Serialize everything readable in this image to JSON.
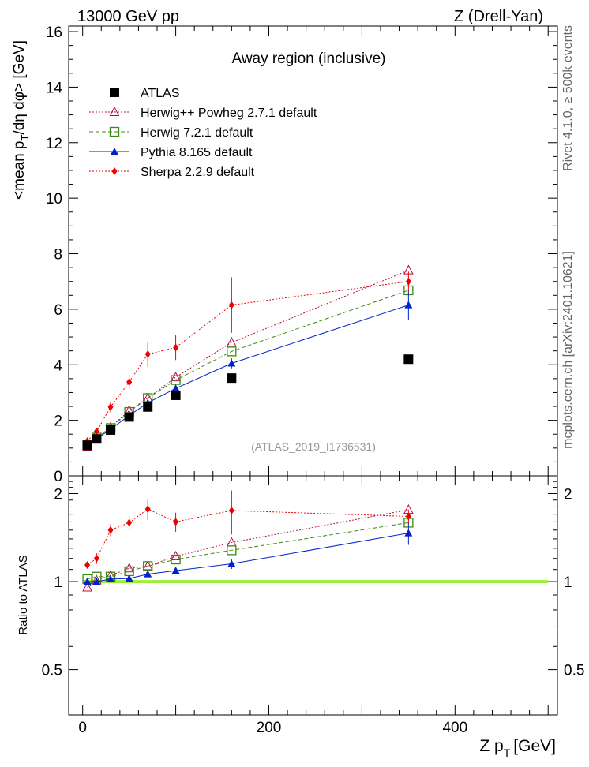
{
  "header": {
    "left": "13000 GeV pp",
    "right": "Z (Drell-Yan)"
  },
  "side_labels": {
    "rivet": "Rivet 4.1.0, ≥ 500k events",
    "mcplots": "mcplots.cern.ch [arXiv:2401.10621]"
  },
  "chart_data": {
    "type": "scatter",
    "title": "Away region (inclusive)",
    "analysis_tag": "(ATLAS_2019_I1736531)",
    "xlabel_main": "Z p",
    "xlabel_sub": "T",
    "xlabel_unit": "[GeV]",
    "ylabel": "<mean p_T/dη dφ> [GeV]",
    "ylabel_parts": {
      "pre": "<mean p",
      "sub": "T",
      "post": "/dη dφ> [GeV]"
    },
    "ratio_ylabel": "Ratio to ATLAS",
    "xlim": [
      -15,
      510
    ],
    "ylim": [
      0,
      16.2
    ],
    "ratio_ylim": [
      0.35,
      2.3
    ],
    "x_ticks": [
      0,
      200,
      400
    ],
    "y_ticks": [
      0,
      2,
      4,
      6,
      8,
      10,
      12,
      14,
      16
    ],
    "ratio_ticks_labels": [
      "0.5",
      "1",
      "2"
    ],
    "ratio_ticks": [
      0.5,
      1,
      2
    ],
    "x": [
      5,
      15,
      30,
      50,
      70,
      100,
      160,
      350
    ],
    "series": [
      {
        "name": "ATLAS",
        "color": "#000000",
        "marker": "square",
        "line": "none",
        "values": [
          1.1,
          1.33,
          1.65,
          2.12,
          2.48,
          2.9,
          3.52,
          4.2
        ],
        "errors": [
          0,
          0,
          0,
          0,
          0,
          0,
          0,
          0
        ]
      },
      {
        "name": "Herwig++ Powheg 2.7.1 default",
        "color": "#b01040",
        "marker": "triangle-open",
        "line": "dotted",
        "values": [
          1.05,
          1.35,
          1.75,
          2.35,
          2.8,
          3.55,
          4.8,
          7.4
        ],
        "errors": [
          0,
          0,
          0,
          0,
          0,
          0,
          0,
          0
        ]
      },
      {
        "name": "Herwig 7.2.1 default",
        "color": "#3c8a10",
        "marker": "square-open",
        "line": "dashed",
        "values": [
          1.12,
          1.38,
          1.72,
          2.3,
          2.8,
          3.45,
          4.48,
          6.68
        ],
        "errors": [
          0,
          0,
          0,
          0,
          0,
          0,
          0,
          0
        ]
      },
      {
        "name": "Pythia 8.165 default",
        "color": "#0022cc",
        "marker": "triangle",
        "line": "solid",
        "values": [
          1.1,
          1.33,
          1.68,
          2.17,
          2.63,
          3.15,
          4.05,
          6.15
        ],
        "errors": [
          0,
          0.05,
          0.06,
          0.07,
          0.08,
          0.12,
          0.18,
          0.55
        ]
      },
      {
        "name": "Sherpa 2.2.9 default",
        "color": "#ee0000",
        "marker": "diamond",
        "line": "dotted",
        "values": [
          1.25,
          1.6,
          2.48,
          3.38,
          4.38,
          4.62,
          6.15,
          7.0
        ],
        "errors": [
          0.05,
          0.1,
          0.2,
          0.25,
          0.45,
          0.45,
          1.0,
          0.35
        ]
      }
    ],
    "ratio_series": [
      {
        "name": "Herwig++ Powheg 2.7.1 default",
        "values": [
          0.955,
          1.01,
          1.05,
          1.11,
          1.13,
          1.22,
          1.36,
          1.76
        ]
      },
      {
        "name": "Herwig 7.2.1 default",
        "values": [
          1.02,
          1.04,
          1.04,
          1.085,
          1.13,
          1.19,
          1.28,
          1.59
        ]
      },
      {
        "name": "Pythia 8.165 default",
        "values": [
          1.0,
          1.0,
          1.02,
          1.025,
          1.06,
          1.09,
          1.15,
          1.465
        ],
        "errors": [
          0,
          0,
          0,
          0,
          0,
          0.015,
          0.045,
          0.13
        ]
      },
      {
        "name": "Sherpa 2.2.9 default",
        "values": [
          1.14,
          1.2,
          1.5,
          1.59,
          1.77,
          1.6,
          1.75,
          1.67
        ],
        "errors": [
          0.03,
          0.05,
          0.07,
          0.09,
          0.15,
          0.12,
          0.3,
          0.09
        ]
      }
    ]
  }
}
